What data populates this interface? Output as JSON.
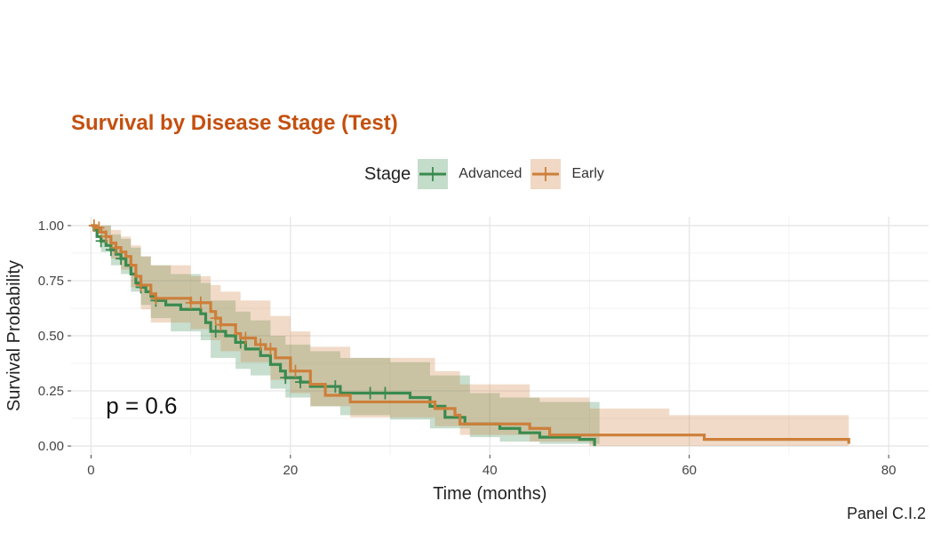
{
  "chart_data": {
    "type": "line",
    "subtype": "kaplan-meier",
    "title": "Survival by Disease Stage (Test)",
    "xlabel": "Time (months)",
    "ylabel": "Survival Probability",
    "xlim": [
      -2,
      84
    ],
    "ylim": [
      -0.04,
      1.04
    ],
    "x_ticks": [
      0,
      20,
      40,
      60,
      80
    ],
    "y_ticks": [
      0.0,
      0.25,
      0.5,
      0.75,
      1.0
    ],
    "x_tick_labels": [
      "0",
      "20",
      "40",
      "60",
      "80"
    ],
    "y_tick_labels": [
      "0.00",
      "0.25",
      "0.50",
      "0.75",
      "1.00"
    ],
    "grid": true,
    "legend": {
      "title": "Stage",
      "position": "top"
    },
    "annotation": "p = 0.6",
    "annotation_pos": {
      "x": 1.5,
      "y": 0.18
    },
    "caption": "Panel C.I.2",
    "series": [
      {
        "name": "Advanced",
        "color": "#3a8a4f",
        "fill": "#3a8a4f",
        "steps": [
          [
            0,
            1.0
          ],
          [
            0.3,
            0.98
          ],
          [
            0.6,
            0.95
          ],
          [
            1.0,
            0.93
          ],
          [
            1.5,
            0.91
          ],
          [
            2.0,
            0.89
          ],
          [
            2.5,
            0.87
          ],
          [
            3.0,
            0.85
          ],
          [
            3.5,
            0.82
          ],
          [
            4.0,
            0.78
          ],
          [
            4.5,
            0.74
          ],
          [
            5.0,
            0.72
          ],
          [
            5.5,
            0.7
          ],
          [
            6.0,
            0.68
          ],
          [
            6.5,
            0.66
          ],
          [
            7.5,
            0.64
          ],
          [
            9.0,
            0.62
          ],
          [
            11.0,
            0.6
          ],
          [
            11.5,
            0.56
          ],
          [
            12.0,
            0.52
          ],
          [
            13.5,
            0.5
          ],
          [
            14.5,
            0.47
          ],
          [
            15.5,
            0.44
          ],
          [
            17.0,
            0.41
          ],
          [
            18.0,
            0.37
          ],
          [
            19.0,
            0.34
          ],
          [
            19.5,
            0.31
          ],
          [
            21.0,
            0.29
          ],
          [
            22.0,
            0.27
          ],
          [
            25.0,
            0.24
          ],
          [
            32.0,
            0.22
          ],
          [
            34.0,
            0.18
          ],
          [
            35.5,
            0.13
          ],
          [
            37.5,
            0.1
          ],
          [
            41.0,
            0.08
          ],
          [
            43.0,
            0.06
          ],
          [
            45.0,
            0.04
          ],
          [
            49.0,
            0.03
          ],
          [
            50.5,
            0.0
          ]
        ],
        "censor": [
          1.0,
          2.0,
          3.0,
          5.0,
          6.5,
          12.5,
          15.0,
          19.5,
          21.0,
          24.5,
          28.0,
          29.5
        ],
        "ci_upper": [
          [
            0,
            1.0
          ],
          [
            1.0,
            1.0
          ],
          [
            2.0,
            0.96
          ],
          [
            3.0,
            0.94
          ],
          [
            4.0,
            0.9
          ],
          [
            5.0,
            0.86
          ],
          [
            6.0,
            0.82
          ],
          [
            8.0,
            0.78
          ],
          [
            11.0,
            0.74
          ],
          [
            12.0,
            0.66
          ],
          [
            14.5,
            0.61
          ],
          [
            16.0,
            0.57
          ],
          [
            18.0,
            0.5
          ],
          [
            19.5,
            0.46
          ],
          [
            22.0,
            0.43
          ],
          [
            25.0,
            0.4
          ],
          [
            30.0,
            0.38
          ],
          [
            34.0,
            0.32
          ],
          [
            38.0,
            0.24
          ],
          [
            41.0,
            0.22
          ],
          [
            45.0,
            0.2
          ],
          [
            51.0,
            0.2
          ]
        ],
        "ci_lower": [
          [
            0,
            1.0
          ],
          [
            1.0,
            0.88
          ],
          [
            2.0,
            0.82
          ],
          [
            3.0,
            0.78
          ],
          [
            4.0,
            0.7
          ],
          [
            5.0,
            0.64
          ],
          [
            6.0,
            0.58
          ],
          [
            8.0,
            0.52
          ],
          [
            11.0,
            0.48
          ],
          [
            12.0,
            0.4
          ],
          [
            14.5,
            0.35
          ],
          [
            16.0,
            0.32
          ],
          [
            18.0,
            0.26
          ],
          [
            19.5,
            0.22
          ],
          [
            22.0,
            0.18
          ],
          [
            25.0,
            0.14
          ],
          [
            30.0,
            0.12
          ],
          [
            34.0,
            0.08
          ],
          [
            38.0,
            0.04
          ],
          [
            41.0,
            0.02
          ],
          [
            45.0,
            0.01
          ],
          [
            51.0,
            0.0
          ]
        ]
      },
      {
        "name": "Early",
        "color": "#cd7f3a",
        "fill": "#cd7f3a",
        "steps": [
          [
            0,
            1.0
          ],
          [
            0.5,
            0.99
          ],
          [
            1.0,
            0.97
          ],
          [
            1.5,
            0.95
          ],
          [
            2.0,
            0.92
          ],
          [
            2.5,
            0.9
          ],
          [
            3.0,
            0.88
          ],
          [
            3.5,
            0.86
          ],
          [
            4.0,
            0.82
          ],
          [
            4.5,
            0.77
          ],
          [
            5.0,
            0.73
          ],
          [
            6.0,
            0.69
          ],
          [
            6.5,
            0.67
          ],
          [
            10.0,
            0.65
          ],
          [
            12.0,
            0.61
          ],
          [
            12.5,
            0.58
          ],
          [
            13.0,
            0.55
          ],
          [
            14.5,
            0.51
          ],
          [
            15.0,
            0.49
          ],
          [
            16.5,
            0.46
          ],
          [
            17.5,
            0.44
          ],
          [
            18.5,
            0.4
          ],
          [
            20.0,
            0.34
          ],
          [
            22.0,
            0.28
          ],
          [
            23.5,
            0.23
          ],
          [
            26.0,
            0.2
          ],
          [
            34.5,
            0.17
          ],
          [
            36.5,
            0.14
          ],
          [
            37.0,
            0.1
          ],
          [
            44.0,
            0.08
          ],
          [
            46.0,
            0.05
          ],
          [
            58.0,
            0.05
          ],
          [
            61.5,
            0.03
          ],
          [
            76.0,
            0.03
          ],
          [
            76.0,
            0.01
          ]
        ],
        "censor": [
          0.3,
          0.8,
          1.5,
          2.5,
          5.0,
          6.5,
          10.0,
          11.0,
          12.5,
          13.0,
          15.5,
          17.0,
          18.0,
          20.5
        ],
        "ci_upper": [
          [
            0,
            1.0
          ],
          [
            1.0,
            1.0
          ],
          [
            2.0,
            0.98
          ],
          [
            3.0,
            0.95
          ],
          [
            4.0,
            0.91
          ],
          [
            5.0,
            0.86
          ],
          [
            6.0,
            0.82
          ],
          [
            10.0,
            0.77
          ],
          [
            12.0,
            0.73
          ],
          [
            13.0,
            0.7
          ],
          [
            15.0,
            0.66
          ],
          [
            18.0,
            0.59
          ],
          [
            20.0,
            0.52
          ],
          [
            22.0,
            0.45
          ],
          [
            26.0,
            0.4
          ],
          [
            34.5,
            0.34
          ],
          [
            37.0,
            0.28
          ],
          [
            44.0,
            0.22
          ],
          [
            50.0,
            0.17
          ],
          [
            58.0,
            0.14
          ],
          [
            76.0,
            0.14
          ]
        ],
        "ci_lower": [
          [
            0,
            1.0
          ],
          [
            1.0,
            0.92
          ],
          [
            2.0,
            0.85
          ],
          [
            3.0,
            0.8
          ],
          [
            4.0,
            0.72
          ],
          [
            5.0,
            0.62
          ],
          [
            6.0,
            0.56
          ],
          [
            10.0,
            0.53
          ],
          [
            12.0,
            0.48
          ],
          [
            13.0,
            0.43
          ],
          [
            15.0,
            0.38
          ],
          [
            18.0,
            0.3
          ],
          [
            20.0,
            0.24
          ],
          [
            22.0,
            0.18
          ],
          [
            26.0,
            0.13
          ],
          [
            34.5,
            0.09
          ],
          [
            37.0,
            0.05
          ],
          [
            44.0,
            0.02
          ],
          [
            50.0,
            0.0
          ],
          [
            76.0,
            0.0
          ]
        ]
      }
    ]
  }
}
